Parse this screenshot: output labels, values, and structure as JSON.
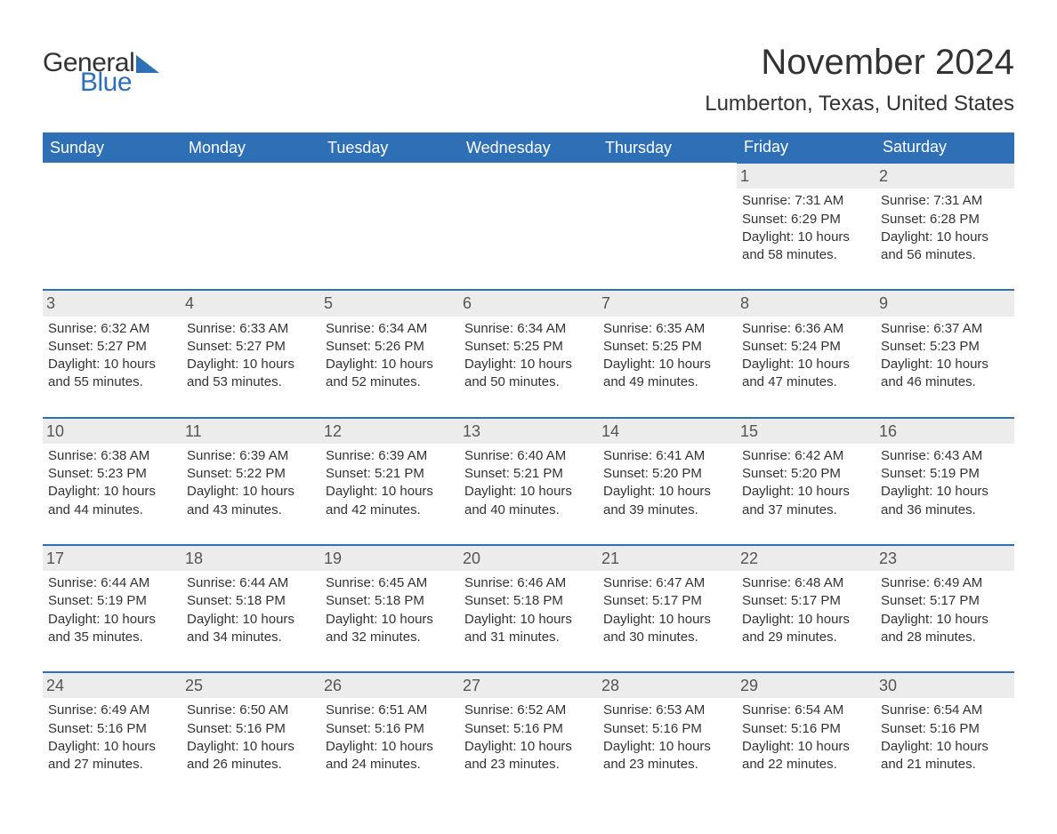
{
  "logo": {
    "general": "General",
    "blue": "Blue",
    "icon_color": "#2f6fb5"
  },
  "title": "November 2024",
  "subtitle": "Lumberton, Texas, United States",
  "colors": {
    "header_bg": "#2f6fb5",
    "header_fg": "#ffffff",
    "daynum_bg": "#ececec",
    "text": "#333333",
    "row_border": "#2f6fb5"
  },
  "fonts": {
    "title_size": 40,
    "subtitle_size": 24,
    "dayhead_size": 18,
    "body_size": 15
  },
  "dayheads": [
    "Sunday",
    "Monday",
    "Tuesday",
    "Wednesday",
    "Thursday",
    "Friday",
    "Saturday"
  ],
  "weeks": [
    [
      null,
      null,
      null,
      null,
      null,
      {
        "n": "1",
        "sr": "Sunrise: 7:31 AM",
        "ss": "Sunset: 6:29 PM",
        "dl": "Daylight: 10 hours and 58 minutes."
      },
      {
        "n": "2",
        "sr": "Sunrise: 7:31 AM",
        "ss": "Sunset: 6:28 PM",
        "dl": "Daylight: 10 hours and 56 minutes."
      }
    ],
    [
      {
        "n": "3",
        "sr": "Sunrise: 6:32 AM",
        "ss": "Sunset: 5:27 PM",
        "dl": "Daylight: 10 hours and 55 minutes."
      },
      {
        "n": "4",
        "sr": "Sunrise: 6:33 AM",
        "ss": "Sunset: 5:27 PM",
        "dl": "Daylight: 10 hours and 53 minutes."
      },
      {
        "n": "5",
        "sr": "Sunrise: 6:34 AM",
        "ss": "Sunset: 5:26 PM",
        "dl": "Daylight: 10 hours and 52 minutes."
      },
      {
        "n": "6",
        "sr": "Sunrise: 6:34 AM",
        "ss": "Sunset: 5:25 PM",
        "dl": "Daylight: 10 hours and 50 minutes."
      },
      {
        "n": "7",
        "sr": "Sunrise: 6:35 AM",
        "ss": "Sunset: 5:25 PM",
        "dl": "Daylight: 10 hours and 49 minutes."
      },
      {
        "n": "8",
        "sr": "Sunrise: 6:36 AM",
        "ss": "Sunset: 5:24 PM",
        "dl": "Daylight: 10 hours and 47 minutes."
      },
      {
        "n": "9",
        "sr": "Sunrise: 6:37 AM",
        "ss": "Sunset: 5:23 PM",
        "dl": "Daylight: 10 hours and 46 minutes."
      }
    ],
    [
      {
        "n": "10",
        "sr": "Sunrise: 6:38 AM",
        "ss": "Sunset: 5:23 PM",
        "dl": "Daylight: 10 hours and 44 minutes."
      },
      {
        "n": "11",
        "sr": "Sunrise: 6:39 AM",
        "ss": "Sunset: 5:22 PM",
        "dl": "Daylight: 10 hours and 43 minutes."
      },
      {
        "n": "12",
        "sr": "Sunrise: 6:39 AM",
        "ss": "Sunset: 5:21 PM",
        "dl": "Daylight: 10 hours and 42 minutes."
      },
      {
        "n": "13",
        "sr": "Sunrise: 6:40 AM",
        "ss": "Sunset: 5:21 PM",
        "dl": "Daylight: 10 hours and 40 minutes."
      },
      {
        "n": "14",
        "sr": "Sunrise: 6:41 AM",
        "ss": "Sunset: 5:20 PM",
        "dl": "Daylight: 10 hours and 39 minutes."
      },
      {
        "n": "15",
        "sr": "Sunrise: 6:42 AM",
        "ss": "Sunset: 5:20 PM",
        "dl": "Daylight: 10 hours and 37 minutes."
      },
      {
        "n": "16",
        "sr": "Sunrise: 6:43 AM",
        "ss": "Sunset: 5:19 PM",
        "dl": "Daylight: 10 hours and 36 minutes."
      }
    ],
    [
      {
        "n": "17",
        "sr": "Sunrise: 6:44 AM",
        "ss": "Sunset: 5:19 PM",
        "dl": "Daylight: 10 hours and 35 minutes."
      },
      {
        "n": "18",
        "sr": "Sunrise: 6:44 AM",
        "ss": "Sunset: 5:18 PM",
        "dl": "Daylight: 10 hours and 34 minutes."
      },
      {
        "n": "19",
        "sr": "Sunrise: 6:45 AM",
        "ss": "Sunset: 5:18 PM",
        "dl": "Daylight: 10 hours and 32 minutes."
      },
      {
        "n": "20",
        "sr": "Sunrise: 6:46 AM",
        "ss": "Sunset: 5:18 PM",
        "dl": "Daylight: 10 hours and 31 minutes."
      },
      {
        "n": "21",
        "sr": "Sunrise: 6:47 AM",
        "ss": "Sunset: 5:17 PM",
        "dl": "Daylight: 10 hours and 30 minutes."
      },
      {
        "n": "22",
        "sr": "Sunrise: 6:48 AM",
        "ss": "Sunset: 5:17 PM",
        "dl": "Daylight: 10 hours and 29 minutes."
      },
      {
        "n": "23",
        "sr": "Sunrise: 6:49 AM",
        "ss": "Sunset: 5:17 PM",
        "dl": "Daylight: 10 hours and 28 minutes."
      }
    ],
    [
      {
        "n": "24",
        "sr": "Sunrise: 6:49 AM",
        "ss": "Sunset: 5:16 PM",
        "dl": "Daylight: 10 hours and 27 minutes."
      },
      {
        "n": "25",
        "sr": "Sunrise: 6:50 AM",
        "ss": "Sunset: 5:16 PM",
        "dl": "Daylight: 10 hours and 26 minutes."
      },
      {
        "n": "26",
        "sr": "Sunrise: 6:51 AM",
        "ss": "Sunset: 5:16 PM",
        "dl": "Daylight: 10 hours and 24 minutes."
      },
      {
        "n": "27",
        "sr": "Sunrise: 6:52 AM",
        "ss": "Sunset: 5:16 PM",
        "dl": "Daylight: 10 hours and 23 minutes."
      },
      {
        "n": "28",
        "sr": "Sunrise: 6:53 AM",
        "ss": "Sunset: 5:16 PM",
        "dl": "Daylight: 10 hours and 23 minutes."
      },
      {
        "n": "29",
        "sr": "Sunrise: 6:54 AM",
        "ss": "Sunset: 5:16 PM",
        "dl": "Daylight: 10 hours and 22 minutes."
      },
      {
        "n": "30",
        "sr": "Sunrise: 6:54 AM",
        "ss": "Sunset: 5:16 PM",
        "dl": "Daylight: 10 hours and 21 minutes."
      }
    ]
  ]
}
